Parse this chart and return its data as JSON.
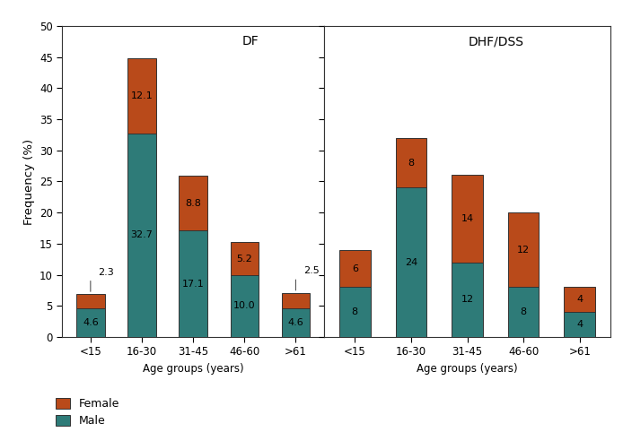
{
  "df_categories": [
    "<15",
    "16-30",
    "31-45",
    "46-60",
    ">61"
  ],
  "df_male": [
    4.6,
    32.7,
    17.1,
    10.0,
    4.6
  ],
  "df_female": [
    2.3,
    12.1,
    8.8,
    5.2,
    2.5
  ],
  "df_labels_male": [
    "4.6",
    "32.7",
    "17.1",
    "10.0",
    "4.6"
  ],
  "df_labels_female": [
    "2.3",
    "12.1",
    "8.8",
    "5.2",
    "2.5"
  ],
  "df_outside_female": [
    true,
    false,
    false,
    false,
    true
  ],
  "dhf_categories": [
    "<15",
    "16-30",
    "31-45",
    "46-60",
    ">61"
  ],
  "dhf_male": [
    8,
    24,
    12,
    8,
    4
  ],
  "dhf_female": [
    6,
    8,
    14,
    12,
    4
  ],
  "dhf_labels_male": [
    "8",
    "24",
    "12",
    "8",
    "4"
  ],
  "dhf_labels_female": [
    "6",
    "8",
    "14",
    "12",
    "4"
  ],
  "color_male": "#2e7b78",
  "color_female": "#b94a1a",
  "label_color": "#000000",
  "ylim": [
    0,
    50
  ],
  "yticks": [
    0,
    5,
    10,
    15,
    20,
    25,
    30,
    35,
    40,
    45,
    50
  ],
  "ylabel": "Frequency (%)",
  "xlabel": "Age groups (years)",
  "title_df": "DF",
  "title_dhf": "DHF/DSS",
  "legend_female": "Female",
  "legend_male": "Male",
  "bar_width": 0.55,
  "background_color": "#ffffff",
  "border_color": "#333333"
}
